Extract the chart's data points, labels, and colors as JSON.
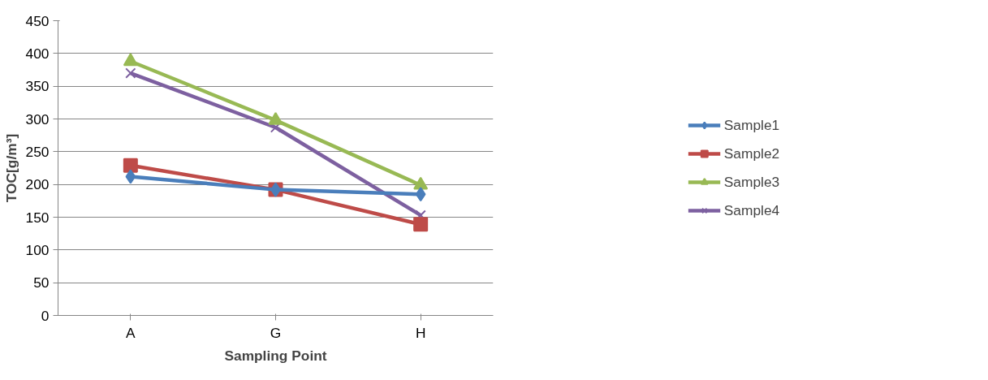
{
  "chart_data": {
    "type": "line",
    "xlabel": "Sampling Point",
    "ylabel": "TOC[g/m³]",
    "categories": [
      "A",
      "G",
      "H"
    ],
    "series": [
      {
        "name": "Sample1",
        "color": "#4a7ebb",
        "marker": "diamond",
        "values": [
          212,
          192,
          185
        ]
      },
      {
        "name": "Sample2",
        "color": "#be4b48",
        "marker": "square",
        "values": [
          229,
          192,
          139
        ]
      },
      {
        "name": "Sample3",
        "color": "#98b954",
        "marker": "triangle",
        "values": [
          388,
          298,
          199
        ]
      },
      {
        "name": "Sample4",
        "color": "#7d60a0",
        "marker": "cross",
        "values": [
          370,
          287,
          153
        ]
      }
    ],
    "ylim": [
      0,
      450
    ],
    "yticks": [
      0,
      50,
      100,
      150,
      200,
      250,
      300,
      350,
      400,
      450
    ],
    "grid": "y",
    "legend": "right",
    "line_style": "solid"
  }
}
